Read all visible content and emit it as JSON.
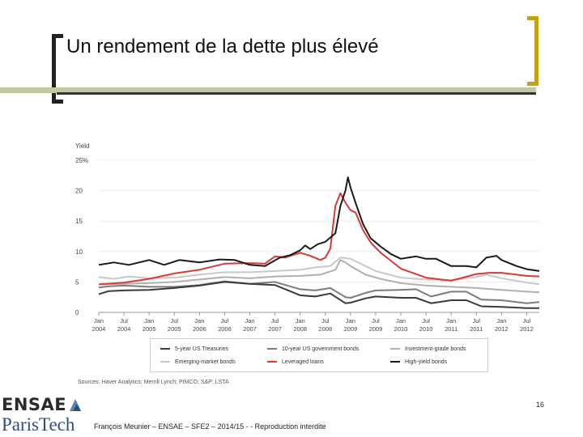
{
  "header": {
    "title": "Un rendement de la dette plus élevé"
  },
  "footer": {
    "page_number": "16",
    "text": "François Meunier – ENSAE – SFE2 – 2014/15 - - Reproduction interdite",
    "logo_top": "ENSAE",
    "logo_bottom": "ParisTech"
  },
  "colors": {
    "hy": "#1a1a1a",
    "ll": "#d83a3a",
    "em": "#c9c9c9",
    "ig": "#b0b0b0",
    "t10": "#7c7c7c",
    "t5": "#3a3a3a",
    "accent": "#c9a013"
  },
  "chart_data": {
    "type": "line",
    "ylabel": "Yield",
    "ylim": [
      0,
      25
    ],
    "yticks": [
      {
        "value": 0,
        "label": "0"
      },
      {
        "value": 5,
        "label": "5"
      },
      {
        "value": 10,
        "label": "10"
      },
      {
        "value": 15,
        "label": "15"
      },
      {
        "value": 20,
        "label": "20"
      },
      {
        "value": 25,
        "label": "25%"
      }
    ],
    "xlim": [
      2004.0,
      2012.75
    ],
    "xticks": [
      {
        "t": 2004.0,
        "month": "Jan",
        "year": "2004"
      },
      {
        "t": 2004.5,
        "month": "Jul",
        "year": "2004"
      },
      {
        "t": 2005.0,
        "month": "Jan",
        "year": "2005"
      },
      {
        "t": 2005.5,
        "month": "Jul",
        "year": "2005"
      },
      {
        "t": 2006.0,
        "month": "Jan",
        "year": "2006"
      },
      {
        "t": 2006.5,
        "month": "Jul",
        "year": "2006"
      },
      {
        "t": 2007.0,
        "month": "Jan",
        "year": "2007"
      },
      {
        "t": 2007.5,
        "month": "Jul",
        "year": "2007"
      },
      {
        "t": 2008.0,
        "month": "Jan",
        "year": "2008"
      },
      {
        "t": 2008.5,
        "month": "Jul",
        "year": "2008"
      },
      {
        "t": 2009.0,
        "month": "Jan",
        "year": "2009"
      },
      {
        "t": 2009.5,
        "month": "Jul",
        "year": "2009"
      },
      {
        "t": 2010.0,
        "month": "Jan",
        "year": "2010"
      },
      {
        "t": 2010.5,
        "month": "Jul",
        "year": "2010"
      },
      {
        "t": 2011.0,
        "month": "Jan",
        "year": "2011"
      },
      {
        "t": 2011.5,
        "month": "Jul",
        "year": "2011"
      },
      {
        "t": 2012.0,
        "month": "Jan",
        "year": "2012"
      },
      {
        "t": 2012.5,
        "month": "Jul",
        "year": "2012"
      }
    ],
    "series": [
      {
        "key": "em",
        "name": "Emerging-market bonds",
        "color": "#c9c9c9",
        "t": [
          2004.0,
          2004.3,
          2004.6,
          2005.0,
          2005.5,
          2006.0,
          2006.5,
          2007.0,
          2007.5,
          2008.0,
          2008.3,
          2008.6,
          2008.8,
          2009.0,
          2009.2,
          2009.5,
          2010.0,
          2010.5,
          2011.0,
          2011.5,
          2011.7,
          2012.0,
          2012.5,
          2012.75
        ],
        "v": [
          5.8,
          5.5,
          5.9,
          5.6,
          5.7,
          6.2,
          6.6,
          6.6,
          6.8,
          7.0,
          7.4,
          7.6,
          9.0,
          8.8,
          8.0,
          6.8,
          5.7,
          5.4,
          5.3,
          5.8,
          6.2,
          5.6,
          4.9,
          4.6
        ]
      },
      {
        "key": "ig",
        "name": "Investment-grade bonds",
        "color": "#b0b0b0",
        "t": [
          2004.0,
          2004.5,
          2005.0,
          2005.5,
          2006.0,
          2006.5,
          2007.0,
          2007.5,
          2008.0,
          2008.4,
          2008.7,
          2008.8,
          2008.9,
          2009.0,
          2009.3,
          2009.6,
          2010.0,
          2010.5,
          2011.0,
          2011.5,
          2012.0,
          2012.5,
          2012.75
        ],
        "v": [
          4.6,
          4.7,
          4.8,
          5.0,
          5.4,
          5.8,
          5.6,
          5.9,
          6.0,
          6.2,
          7.0,
          8.6,
          8.2,
          7.6,
          6.2,
          5.5,
          4.8,
          4.4,
          4.2,
          4.0,
          3.7,
          3.4,
          3.3
        ]
      },
      {
        "key": "t10",
        "name": "10-year US government bonds",
        "color": "#7c7c7c",
        "t": [
          2004.0,
          2004.2,
          2004.5,
          2005.0,
          2005.5,
          2006.0,
          2006.5,
          2007.0,
          2007.5,
          2008.0,
          2008.3,
          2008.6,
          2008.9,
          2009.0,
          2009.3,
          2009.5,
          2010.0,
          2010.3,
          2010.6,
          2011.0,
          2011.3,
          2011.6,
          2012.0,
          2012.5,
          2012.75
        ],
        "v": [
          4.1,
          4.3,
          4.4,
          4.2,
          4.2,
          4.5,
          5.1,
          4.7,
          5.0,
          3.8,
          3.6,
          4.0,
          2.5,
          2.4,
          3.2,
          3.6,
          3.7,
          3.8,
          2.6,
          3.4,
          3.4,
          2.1,
          2.0,
          1.5,
          1.7
        ]
      },
      {
        "key": "t5",
        "name": "5-year US Treasuries",
        "color": "#3a3a3a",
        "t": [
          2004.0,
          2004.2,
          2004.5,
          2005.0,
          2005.5,
          2006.0,
          2006.5,
          2007.0,
          2007.5,
          2008.0,
          2008.3,
          2008.6,
          2008.9,
          2009.0,
          2009.3,
          2009.5,
          2010.0,
          2010.3,
          2010.6,
          2011.0,
          2011.3,
          2011.6,
          2012.0,
          2012.5,
          2012.75
        ],
        "v": [
          3.0,
          3.5,
          3.6,
          3.7,
          4.0,
          4.4,
          5.0,
          4.7,
          4.5,
          2.8,
          2.6,
          3.1,
          1.5,
          1.6,
          2.3,
          2.6,
          2.4,
          2.4,
          1.5,
          2.0,
          2.0,
          1.0,
          0.9,
          0.7,
          0.7
        ]
      },
      {
        "key": "ll",
        "name": "Leveraged loans",
        "color": "#d83a3a",
        "t": [
          2004.0,
          2004.5,
          2005.0,
          2005.5,
          2006.0,
          2006.5,
          2007.0,
          2007.3,
          2007.5,
          2007.7,
          2008.0,
          2008.2,
          2008.4,
          2008.5,
          2008.6,
          2008.7,
          2008.8,
          2008.9,
          2009.0,
          2009.1,
          2009.25,
          2009.4,
          2009.6,
          2009.8,
          2010.0,
          2010.5,
          2011.0,
          2011.5,
          2011.75,
          2012.0,
          2012.5,
          2012.75
        ],
        "v": [
          4.6,
          4.9,
          5.5,
          6.4,
          7.0,
          8.0,
          8.1,
          8.0,
          9.2,
          9.0,
          9.8,
          9.3,
          8.6,
          9.0,
          10.5,
          17.5,
          19.6,
          18.0,
          16.8,
          16.4,
          13.5,
          11.5,
          9.8,
          8.5,
          7.2,
          5.7,
          5.2,
          6.3,
          6.5,
          6.5,
          6.0,
          5.9
        ]
      },
      {
        "key": "hy",
        "name": "High-yield bonds",
        "color": "#1a1a1a",
        "t": [
          2004.0,
          2004.3,
          2004.6,
          2005.0,
          2005.3,
          2005.6,
          2006.0,
          2006.4,
          2006.7,
          2007.0,
          2007.3,
          2007.6,
          2007.8,
          2008.0,
          2008.1,
          2008.2,
          2008.35,
          2008.5,
          2008.7,
          2008.8,
          2008.9,
          2008.95,
          2009.0,
          2009.1,
          2009.25,
          2009.4,
          2009.6,
          2009.8,
          2010.0,
          2010.3,
          2010.5,
          2010.7,
          2011.0,
          2011.3,
          2011.5,
          2011.7,
          2011.9,
          2012.0,
          2012.3,
          2012.5,
          2012.75
        ],
        "v": [
          7.8,
          8.2,
          7.8,
          8.6,
          7.8,
          8.6,
          8.2,
          8.7,
          8.6,
          7.8,
          7.6,
          9.0,
          9.4,
          10.2,
          11.0,
          10.4,
          11.2,
          11.6,
          13.0,
          17.5,
          20.0,
          22.2,
          20.5,
          18.0,
          14.5,
          12.2,
          10.8,
          9.6,
          8.8,
          9.2,
          8.8,
          8.8,
          7.6,
          7.6,
          7.4,
          9.0,
          9.3,
          8.6,
          7.6,
          7.1,
          6.8
        ]
      }
    ],
    "legend": [
      {
        "key": "t5",
        "label": "5-year US Treasuries"
      },
      {
        "key": "t10",
        "label": "10-year US government bonds"
      },
      {
        "key": "ig",
        "label": "Investment-grade bonds"
      },
      {
        "key": "em",
        "label": "Emerging-market bonds"
      },
      {
        "key": "ll",
        "label": "Leveraged loans"
      },
      {
        "key": "hy",
        "label": "High-yield bonds"
      }
    ],
    "source": "Sources: Haver Analytics; Merrill Lynch; PIMCO; S&P; LSTA"
  }
}
